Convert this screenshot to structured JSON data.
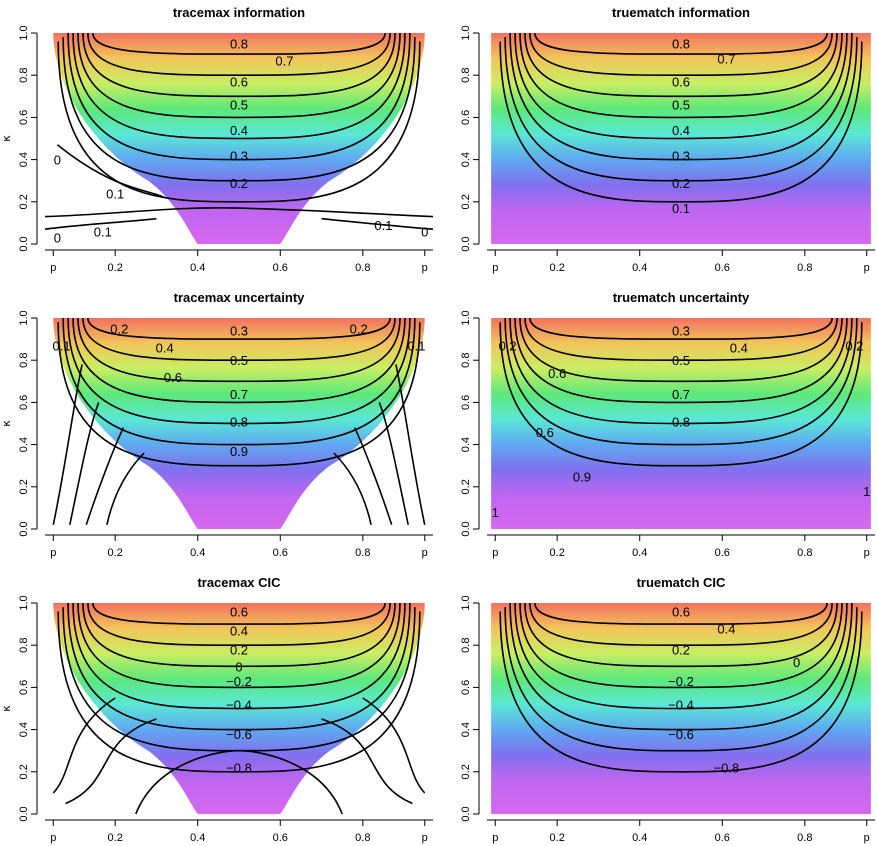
{
  "chart_data": [
    {
      "type": "heatmap",
      "title": "tracemax information",
      "ylabel": "κ",
      "xticks": [
        "p",
        "0.2",
        "0.4",
        "0.6",
        "0.8",
        "p"
      ],
      "yticks": [
        "0.0",
        "0.2",
        "0.4",
        "0.6",
        "0.8",
        "1.0"
      ],
      "xlim": [
        0.03,
        0.97
      ],
      "ylim": [
        0,
        1
      ],
      "colormap": "rainbow",
      "contour_labels": [
        {
          "text": "0.8",
          "x": 0.5,
          "y": 0.95
        },
        {
          "text": "0.7",
          "x": 0.61,
          "y": 0.87
        },
        {
          "text": "0.6",
          "x": 0.5,
          "y": 0.77
        },
        {
          "text": "0.5",
          "x": 0.5,
          "y": 0.66
        },
        {
          "text": "0.4",
          "x": 0.5,
          "y": 0.54
        },
        {
          "text": "0.3",
          "x": 0.5,
          "y": 0.42
        },
        {
          "text": "0.2",
          "x": 0.5,
          "y": 0.29
        },
        {
          "text": "0.1",
          "x": 0.2,
          "y": 0.24
        },
        {
          "text": "0.1",
          "x": 0.17,
          "y": 0.06
        },
        {
          "text": "0.1",
          "x": 0.85,
          "y": 0.09
        },
        {
          "text": "0",
          "x": 0.06,
          "y": 0.4
        },
        {
          "text": "0",
          "x": 0.06,
          "y": 0.03
        },
        {
          "text": "0",
          "x": 0.95,
          "y": 0.06
        }
      ]
    },
    {
      "type": "heatmap",
      "title": "truematch information",
      "ylabel": "",
      "xticks": [
        "p",
        "0.2",
        "0.4",
        "0.6",
        "0.8",
        "p"
      ],
      "yticks": [
        "0.0",
        "0.2",
        "0.4",
        "0.6",
        "0.8",
        "1.0"
      ],
      "xlim": [
        0.03,
        0.97
      ],
      "ylim": [
        0,
        1
      ],
      "colormap": "rainbow",
      "contour_labels": [
        {
          "text": "0.8",
          "x": 0.5,
          "y": 0.95
        },
        {
          "text": "0.7",
          "x": 0.61,
          "y": 0.88
        },
        {
          "text": "0.6",
          "x": 0.5,
          "y": 0.77
        },
        {
          "text": "0.5",
          "x": 0.5,
          "y": 0.66
        },
        {
          "text": "0.4",
          "x": 0.5,
          "y": 0.54
        },
        {
          "text": "0.3",
          "x": 0.5,
          "y": 0.42
        },
        {
          "text": "0.2",
          "x": 0.5,
          "y": 0.29
        },
        {
          "text": "0.1",
          "x": 0.5,
          "y": 0.17
        }
      ]
    },
    {
      "type": "heatmap",
      "title": "tracemax uncertainty",
      "ylabel": "κ",
      "xticks": [
        "p",
        "0.2",
        "0.4",
        "0.6",
        "0.8",
        "p"
      ],
      "yticks": [
        "0.0",
        "0.2",
        "0.4",
        "0.6",
        "0.8",
        "1.0"
      ],
      "xlim": [
        0.03,
        0.97
      ],
      "ylim": [
        0,
        1
      ],
      "colormap": "rainbow",
      "contour_labels": [
        {
          "text": "0.3",
          "x": 0.5,
          "y": 0.94
        },
        {
          "text": "0.2",
          "x": 0.21,
          "y": 0.95
        },
        {
          "text": "0.2",
          "x": 0.79,
          "y": 0.95
        },
        {
          "text": "0.1",
          "x": 0.07,
          "y": 0.87
        },
        {
          "text": "0.1",
          "x": 0.93,
          "y": 0.87
        },
        {
          "text": "0.4",
          "x": 0.32,
          "y": 0.86
        },
        {
          "text": "0.5",
          "x": 0.5,
          "y": 0.8
        },
        {
          "text": "0.6",
          "x": 0.34,
          "y": 0.72
        },
        {
          "text": "0.7",
          "x": 0.5,
          "y": 0.64
        },
        {
          "text": "0.8",
          "x": 0.5,
          "y": 0.51
        },
        {
          "text": "0.9",
          "x": 0.5,
          "y": 0.37
        }
      ]
    },
    {
      "type": "heatmap",
      "title": "truematch uncertainty",
      "ylabel": "",
      "xticks": [
        "p",
        "0.2",
        "0.4",
        "0.6",
        "0.8",
        "p"
      ],
      "yticks": [
        "0.0",
        "0.2",
        "0.4",
        "0.6",
        "0.8",
        "1.0"
      ],
      "xlim": [
        0.03,
        0.97
      ],
      "ylim": [
        0,
        1
      ],
      "colormap": "rainbow",
      "contour_labels": [
        {
          "text": "0.3",
          "x": 0.5,
          "y": 0.94
        },
        {
          "text": "0.2",
          "x": 0.08,
          "y": 0.87
        },
        {
          "text": "0.2",
          "x": 0.92,
          "y": 0.87
        },
        {
          "text": "0.4",
          "x": 0.64,
          "y": 0.86
        },
        {
          "text": "0.5",
          "x": 0.5,
          "y": 0.8
        },
        {
          "text": "0.6",
          "x": 0.2,
          "y": 0.74
        },
        {
          "text": "0.7",
          "x": 0.5,
          "y": 0.64
        },
        {
          "text": "0.6",
          "x": 0.17,
          "y": 0.46
        },
        {
          "text": "0.8",
          "x": 0.5,
          "y": 0.51
        },
        {
          "text": "0.9",
          "x": 0.26,
          "y": 0.25
        },
        {
          "text": "1",
          "x": 0.05,
          "y": 0.08
        },
        {
          "text": "1",
          "x": 0.95,
          "y": 0.18
        }
      ]
    },
    {
      "type": "heatmap",
      "title": "tracemax CIC",
      "ylabel": "κ",
      "xticks": [
        "p",
        "0.2",
        "0.4",
        "0.6",
        "0.8",
        "p"
      ],
      "yticks": [
        "0.0",
        "0.2",
        "0.4",
        "0.6",
        "0.8",
        "1.0"
      ],
      "xlim": [
        0.03,
        0.97
      ],
      "ylim": [
        0,
        1
      ],
      "colormap": "rainbow",
      "contour_labels": [
        {
          "text": "0.6",
          "x": 0.5,
          "y": 0.96
        },
        {
          "text": "0.4",
          "x": 0.5,
          "y": 0.87
        },
        {
          "text": "0.2",
          "x": 0.5,
          "y": 0.78
        },
        {
          "text": "0",
          "x": 0.5,
          "y": 0.7
        },
        {
          "text": "−0.2",
          "x": 0.5,
          "y": 0.63
        },
        {
          "text": "−0.4",
          "x": 0.5,
          "y": 0.52
        },
        {
          "text": "−0.6",
          "x": 0.5,
          "y": 0.38
        },
        {
          "text": "−0.8",
          "x": 0.5,
          "y": 0.22
        }
      ]
    },
    {
      "type": "heatmap",
      "title": "truematch CIC",
      "ylabel": "",
      "xticks": [
        "p",
        "0.2",
        "0.4",
        "0.6",
        "0.8",
        "p"
      ],
      "yticks": [
        "0.0",
        "0.2",
        "0.4",
        "0.6",
        "0.8",
        "1.0"
      ],
      "xlim": [
        0.03,
        0.97
      ],
      "ylim": [
        0,
        1
      ],
      "colormap": "rainbow",
      "contour_labels": [
        {
          "text": "0.6",
          "x": 0.5,
          "y": 0.96
        },
        {
          "text": "0.4",
          "x": 0.61,
          "y": 0.88
        },
        {
          "text": "0.2",
          "x": 0.5,
          "y": 0.78
        },
        {
          "text": "0",
          "x": 0.78,
          "y": 0.72
        },
        {
          "text": "−0.2",
          "x": 0.5,
          "y": 0.63
        },
        {
          "text": "−0.4",
          "x": 0.5,
          "y": 0.52
        },
        {
          "text": "−0.6",
          "x": 0.5,
          "y": 0.38
        },
        {
          "text": "−0.8",
          "x": 0.61,
          "y": 0.22
        }
      ]
    }
  ]
}
